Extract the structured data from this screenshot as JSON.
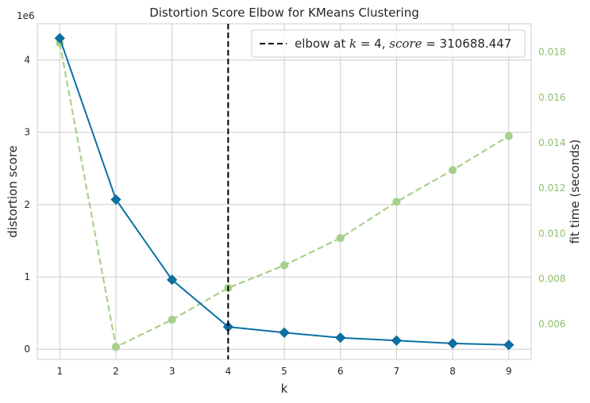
{
  "chart_data": {
    "type": "line",
    "title": "Distortion Score Elbow for KMeans Clustering",
    "xlabel": "k",
    "ylabel": "distortion score",
    "ylabel_right": "fit time (seconds)",
    "y_offset_label": "1e6",
    "x": [
      1,
      2,
      3,
      4,
      5,
      6,
      7,
      8,
      9
    ],
    "xlim": [
      0.6,
      9.4
    ],
    "ylim": [
      -0.14,
      4.5
    ],
    "ylim_right": [
      0.00445,
      0.01925
    ],
    "yticks": [
      0,
      1,
      2,
      3,
      4
    ],
    "yticks_right": [
      "0.006",
      "0.008",
      "0.010",
      "0.012",
      "0.014",
      "0.016",
      "0.018"
    ],
    "grid": true,
    "legend_placement": "top-right",
    "series": [
      {
        "axis": "left",
        "style": "solid",
        "marker": "diamond",
        "color": "#0a71a3",
        "values": [
          4.3,
          2.07,
          0.96,
          0.31,
          0.23,
          0.16,
          0.12,
          0.08,
          0.06
        ]
      },
      {
        "axis": "right",
        "style": "dashed",
        "marker": "circle",
        "color": "#a8d08d",
        "values": [
          0.0184,
          0.005,
          0.0062,
          0.0076,
          0.0086,
          0.0098,
          0.0114,
          0.0128,
          0.0143
        ]
      }
    ],
    "elbow": {
      "k": 4,
      "score": "310688.447",
      "legend_prefix": "elbow at ",
      "legend_k": "k",
      "legend_eq_k": " = 4, ",
      "legend_score_name": "score",
      "legend_eq_score": " = 310688.447",
      "color": "#000000"
    },
    "colors": {
      "right_axis": "#8fbe6d",
      "grid": "#cccccc",
      "frame": "#cccccc"
    }
  }
}
